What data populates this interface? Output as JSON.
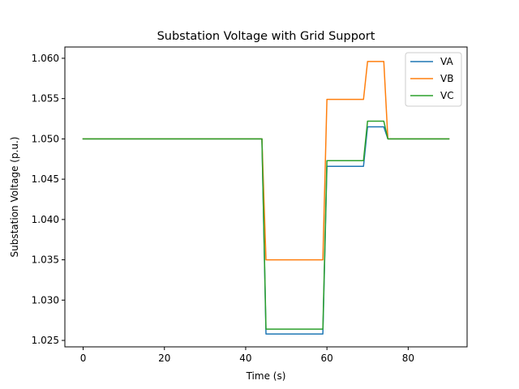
{
  "chart_data": {
    "type": "line",
    "title": "Substation Voltage with Grid Support",
    "xlabel": "Time (s)",
    "ylabel": "Substation Voltage (p.u.)",
    "xlim": [
      -4.5,
      94.5
    ],
    "ylim": [
      1.0242,
      1.0614
    ],
    "xticks": [
      0,
      20,
      40,
      60,
      80
    ],
    "yticks": [
      1.025,
      1.03,
      1.035,
      1.04,
      1.045,
      1.05,
      1.055,
      1.06
    ],
    "ytick_labels": [
      "1.025",
      "1.030",
      "1.035",
      "1.040",
      "1.045",
      "1.050",
      "1.055",
      "1.060"
    ],
    "grid": false,
    "legend_position": "top-right",
    "series": [
      {
        "name": "VA",
        "color": "#1f77b4",
        "x": [
          0,
          44,
          45,
          59,
          60,
          69,
          70,
          74,
          75,
          90
        ],
        "y": [
          1.05,
          1.05,
          1.0258,
          1.0258,
          1.0466,
          1.0466,
          1.0515,
          1.0515,
          1.05,
          1.05
        ]
      },
      {
        "name": "VB",
        "color": "#ff7f0e",
        "x": [
          0,
          44,
          45,
          59,
          60,
          69,
          70,
          74,
          75,
          90
        ],
        "y": [
          1.05,
          1.05,
          1.035,
          1.035,
          1.0549,
          1.0549,
          1.0596,
          1.0596,
          1.05,
          1.05
        ]
      },
      {
        "name": "VC",
        "color": "#2ca02c",
        "x": [
          0,
          44,
          45,
          59,
          60,
          69,
          70,
          74,
          75,
          90
        ],
        "y": [
          1.05,
          1.05,
          1.0264,
          1.0264,
          1.0473,
          1.0473,
          1.0522,
          1.0522,
          1.05,
          1.05
        ]
      }
    ]
  }
}
